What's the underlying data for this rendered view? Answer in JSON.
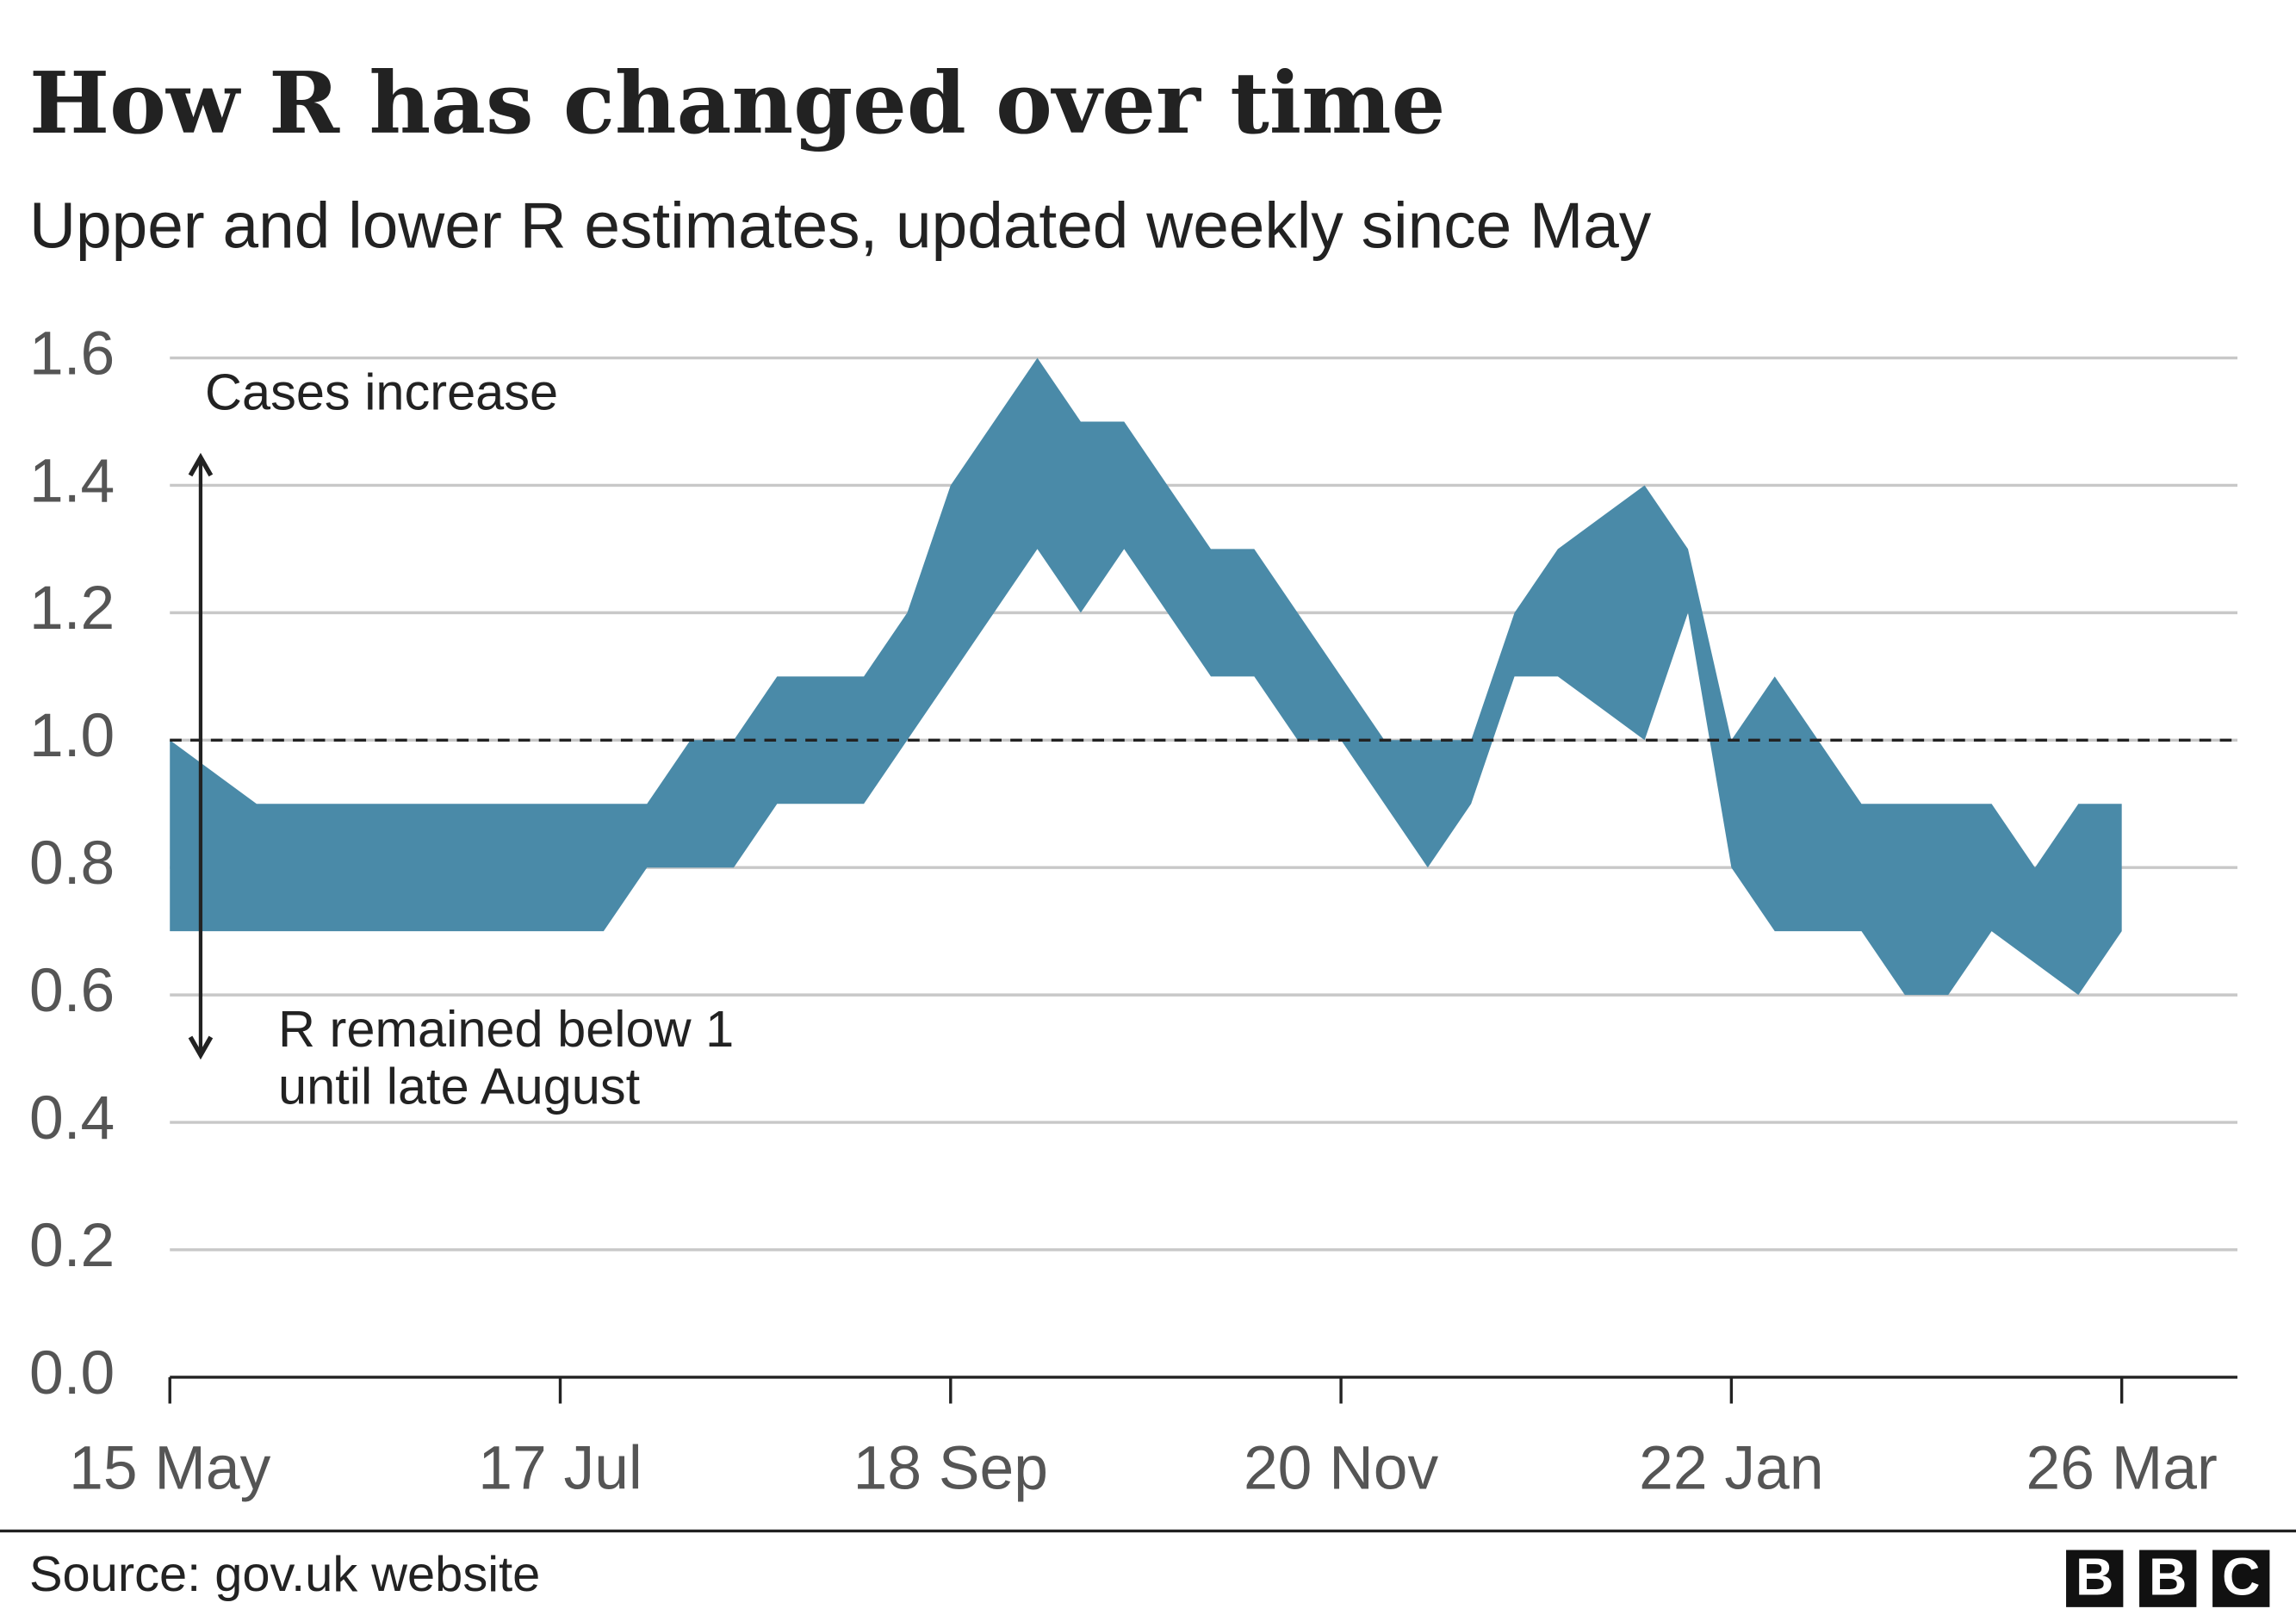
{
  "chart_data": {
    "type": "range_area",
    "title": "How R has changed over time",
    "subtitle": "Upper and lower R estimates, updated weekly since May",
    "categories": [
      "15 May",
      null,
      null,
      null,
      null,
      null,
      null,
      null,
      null,
      "17 Jul",
      null,
      null,
      null,
      null,
      null,
      null,
      null,
      null,
      "18 Sep",
      null,
      null,
      null,
      null,
      null,
      null,
      null,
      null,
      "20 Nov",
      null,
      null,
      null,
      null,
      null,
      null,
      null,
      null,
      "22 Jan",
      null,
      null,
      null,
      null,
      null,
      null,
      null,
      null,
      "26 Mar"
    ],
    "upper": [
      1.0,
      0.95,
      0.9,
      0.9,
      0.9,
      0.9,
      0.9,
      0.9,
      0.9,
      0.9,
      0.9,
      0.9,
      1.0,
      1.0,
      1.1,
      1.1,
      1.1,
      1.2,
      1.4,
      1.5,
      1.6,
      1.5,
      1.5,
      1.4,
      1.3,
      1.3,
      1.2,
      1.1,
      1.0,
      1.0,
      1.0,
      1.2,
      1.3,
      1.35,
      1.4,
      1.3,
      1.0,
      1.1,
      1.0,
      0.9,
      0.9,
      0.9,
      0.9,
      0.8,
      0.9,
      0.9
    ],
    "lower": [
      0.7,
      0.7,
      0.7,
      0.7,
      0.7,
      0.7,
      0.7,
      0.7,
      0.7,
      0.7,
      0.7,
      0.8,
      0.8,
      0.8,
      0.9,
      0.9,
      0.9,
      1.0,
      1.1,
      1.2,
      1.3,
      1.2,
      1.3,
      1.2,
      1.1,
      1.1,
      1.0,
      1.0,
      0.9,
      0.8,
      0.9,
      1.1,
      1.1,
      1.05,
      1.0,
      1.2,
      0.8,
      0.7,
      0.7,
      0.7,
      0.6,
      0.6,
      0.7,
      0.65,
      0.6,
      0.7
    ],
    "color": "#4a8aa8",
    "ylim": [
      0,
      1.6
    ],
    "yticks": [
      {
        "value": 0,
        "label": "0.0"
      },
      0.2,
      0.4,
      0.6,
      0.8,
      {
        "value": 1,
        "label": "1.0"
      },
      1.2,
      1.4,
      1.6
    ],
    "grid": true,
    "reference_line": 1,
    "annotations": [
      "Cases increase",
      "R remained below 1",
      "until late August"
    ],
    "source": "Source: gov.uk website",
    "logo": [
      "B",
      "B",
      "C"
    ]
  }
}
